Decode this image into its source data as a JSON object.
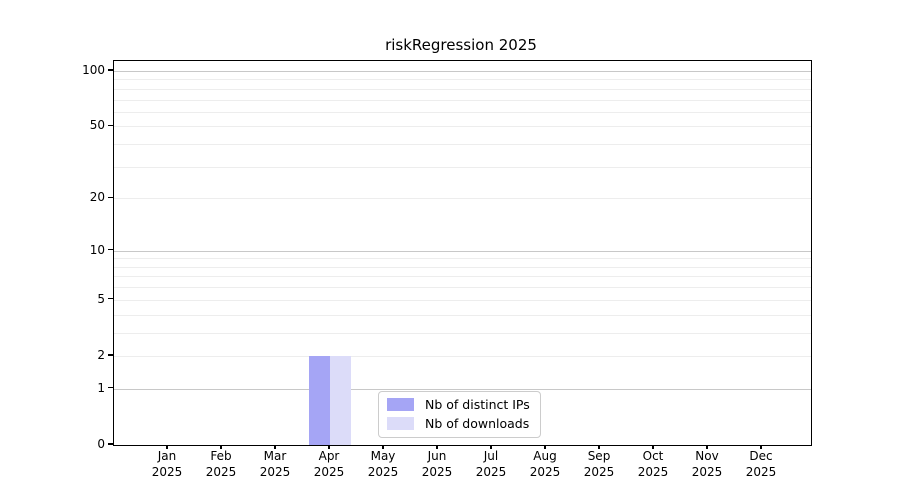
{
  "chart_data": {
    "type": "bar",
    "title": "riskRegression 2025",
    "categories": [
      "Jan 2025",
      "Feb 2025",
      "Mar 2025",
      "Apr 2025",
      "May 2025",
      "Jun 2025",
      "Jul 2025",
      "Aug 2025",
      "Sep 2025",
      "Oct 2025",
      "Nov 2025",
      "Dec 2025"
    ],
    "series": [
      {
        "name": "Nb of distinct IPs",
        "color": "#a5a5f5",
        "values": [
          0,
          0,
          0,
          2,
          0,
          0,
          0,
          0,
          0,
          0,
          0,
          0
        ]
      },
      {
        "name": "Nb of downloads",
        "color": "#dcdcf9",
        "values": [
          0,
          0,
          0,
          2,
          0,
          0,
          0,
          0,
          0,
          0,
          0,
          0
        ]
      }
    ],
    "xlabel": "",
    "ylabel": "",
    "y_axis": {
      "scale": "log1p",
      "tick_labels": [
        0,
        1,
        2,
        5,
        10,
        20,
        50,
        100
      ],
      "major_gridlines": [
        1,
        10,
        100
      ],
      "minor_gridlines": [
        2,
        3,
        4,
        5,
        6,
        7,
        8,
        9,
        20,
        30,
        40,
        50,
        60,
        70,
        80,
        90
      ],
      "ylim": [
        0,
        113
      ]
    },
    "legend": {
      "position": "lower center",
      "entries": [
        "Nb of distinct IPs",
        "Nb of downloads"
      ]
    },
    "grid": true,
    "colors": {
      "major_grid": "#c8c8c8",
      "minor_grid": "#ededed",
      "spine": "#000000",
      "background": "#ffffff",
      "text": "#000000"
    }
  }
}
